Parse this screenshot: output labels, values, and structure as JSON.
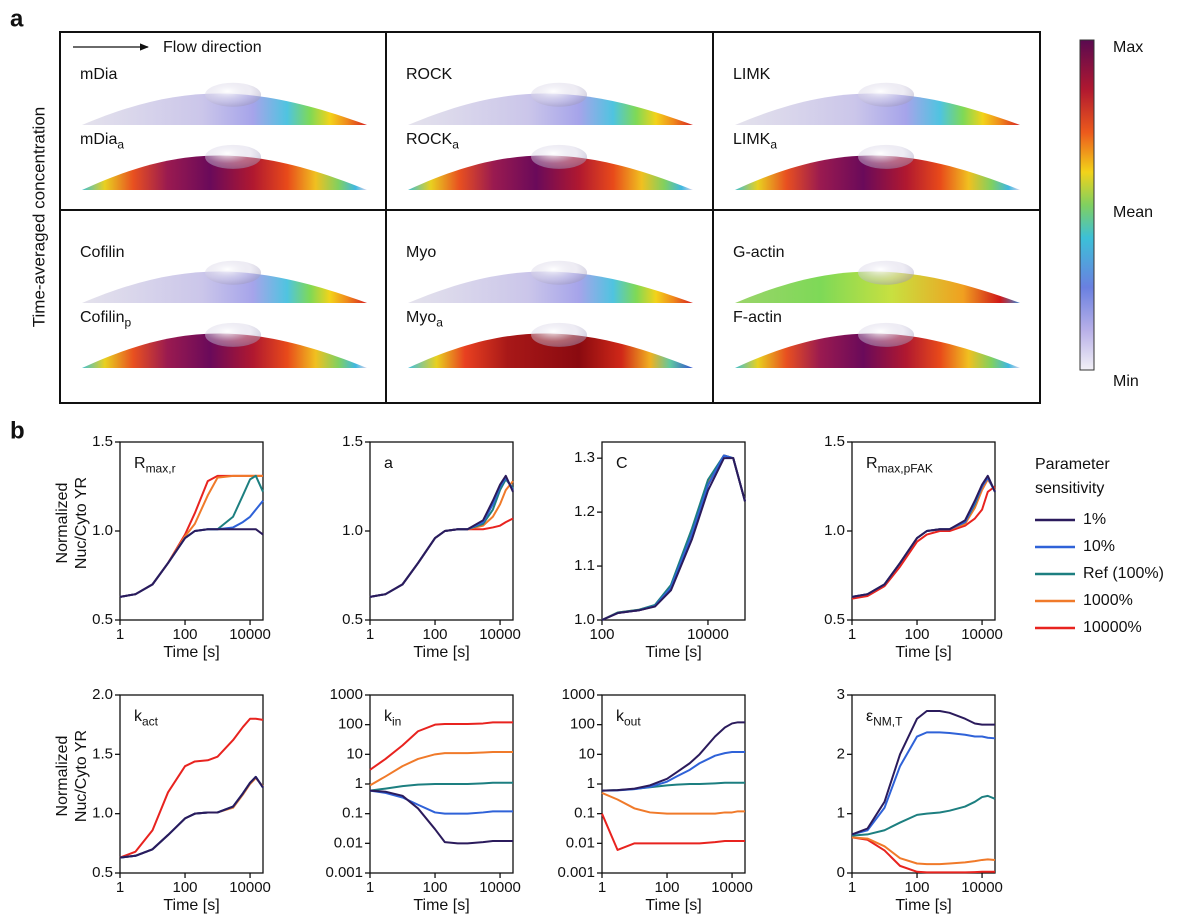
{
  "panel_a": {
    "label": "a",
    "flow": "Flow direction",
    "ylabel": "Time-averaged concentration",
    "cells": [
      {
        "top": {
          "main": "mDia"
        },
        "bottom": {
          "main": "mDia",
          "sub": "a"
        }
      },
      {
        "top": {
          "main": "ROCK"
        },
        "bottom": {
          "main": "ROCK",
          "sub": "a"
        }
      },
      {
        "top": {
          "main": "LIMK"
        },
        "bottom": {
          "main": "LIMK",
          "sub": "a"
        }
      },
      {
        "top": {
          "main": "Cofilin"
        },
        "bottom": {
          "main": "Cofilin",
          "sub": "p"
        }
      },
      {
        "top": {
          "main": "Myo"
        },
        "bottom": {
          "main": "Myo",
          "sub": "a"
        }
      },
      {
        "top": {
          "main": "G-actin"
        },
        "bottom": {
          "main": "F-actin"
        }
      }
    ],
    "colorbar": {
      "max": "Max",
      "mean": "Mean",
      "min": "Min"
    }
  },
  "panel_b": {
    "label": "b",
    "legend": {
      "title": [
        "Parameter",
        "sensitivity"
      ],
      "entries": [
        {
          "name": "1%",
          "color": "#2b1b5c"
        },
        {
          "name": "10%",
          "color": "#2f62d8"
        },
        {
          "name": "Ref (100%)",
          "color": "#1d7f80"
        },
        {
          "name": "1000%",
          "color": "#f07a2a"
        },
        {
          "name": "10000%",
          "color": "#e8231f"
        }
      ]
    }
  },
  "chart_data": [
    {
      "type": "line",
      "label": {
        "main": "R",
        "sub": "max,r"
      },
      "ylabel": [
        "Normalized",
        "Nuc/Cyto YR"
      ],
      "xlabel": "Time [s]",
      "xscale": "log",
      "yscale": "linear",
      "x": [
        1,
        3,
        10,
        30,
        100,
        200,
        500,
        1000,
        3000,
        6000,
        10000,
        15000,
        25000
      ],
      "xlim": [
        1,
        25000
      ],
      "xticks": [
        1,
        100,
        10000
      ],
      "ylim": [
        0.5,
        1.5
      ],
      "yticks": [
        0.5,
        {
          "value": 1,
          "label": "1.0"
        },
        1.5
      ],
      "series": [
        {
          "values": [
            0.63,
            0.645,
            0.7,
            0.82,
            0.96,
            1.0,
            1.01,
            1.01,
            1.01,
            1.01,
            1.01,
            1.01,
            0.98
          ]
        },
        {
          "values": [
            0.63,
            0.645,
            0.7,
            0.82,
            0.96,
            1.0,
            1.01,
            1.01,
            1.02,
            1.05,
            1.08,
            1.12,
            1.17
          ]
        },
        {
          "values": [
            0.63,
            0.645,
            0.7,
            0.82,
            0.96,
            1.0,
            1.01,
            1.01,
            1.08,
            1.2,
            1.29,
            1.31,
            1.22
          ]
        },
        {
          "values": [
            0.63,
            0.645,
            0.7,
            0.82,
            0.97,
            1.04,
            1.2,
            1.3,
            1.31,
            1.31,
            1.31,
            1.31,
            1.31
          ]
        },
        {
          "values": [
            0.63,
            0.645,
            0.7,
            0.82,
            0.98,
            1.1,
            1.28,
            1.31,
            1.31,
            1.31,
            1.31,
            1.31,
            1.31
          ]
        }
      ]
    },
    {
      "type": "line",
      "label": {
        "main": "a"
      },
      "xlabel": "Time [s]",
      "xscale": "log",
      "yscale": "linear",
      "x": [
        1,
        3,
        10,
        30,
        100,
        200,
        500,
        1000,
        3000,
        6000,
        10000,
        15000,
        25000
      ],
      "xlim": [
        1,
        25000
      ],
      "xticks": [
        1,
        100,
        10000
      ],
      "ylim": [
        0.5,
        1.5
      ],
      "yticks": [
        0.5,
        {
          "value": 1,
          "label": "1.0"
        },
        1.5
      ],
      "series": [
        {
          "values": [
            0.63,
            0.645,
            0.7,
            0.82,
            0.96,
            1.0,
            1.01,
            1.01,
            1.06,
            1.17,
            1.26,
            1.31,
            1.22
          ]
        },
        {
          "values": [
            0.63,
            0.645,
            0.7,
            0.82,
            0.96,
            1.0,
            1.01,
            1.01,
            1.05,
            1.15,
            1.25,
            1.3,
            1.23
          ]
        },
        {
          "values": [
            0.63,
            0.645,
            0.7,
            0.82,
            0.96,
            1.0,
            1.01,
            1.01,
            1.04,
            1.12,
            1.23,
            1.29,
            1.24
          ]
        },
        {
          "values": [
            0.63,
            0.645,
            0.7,
            0.82,
            0.96,
            1.0,
            1.01,
            1.01,
            1.03,
            1.08,
            1.15,
            1.23,
            1.28
          ]
        },
        {
          "values": [
            0.63,
            0.645,
            0.7,
            0.82,
            0.96,
            1.0,
            1.01,
            1.01,
            1.01,
            1.02,
            1.03,
            1.05,
            1.07
          ]
        }
      ]
    },
    {
      "type": "line",
      "label": {
        "main": "C"
      },
      "xlabel": "Time [s]",
      "xscale": "log",
      "yscale": "linear",
      "x": [
        100,
        200,
        500,
        1000,
        2000,
        5000,
        10000,
        20000,
        30000,
        50000
      ],
      "xlim": [
        100,
        50000
      ],
      "xticks": [
        100,
        10000
      ],
      "ylim": [
        1.0,
        1.33
      ],
      "yticks": [
        {
          "value": 1,
          "label": "1.0"
        },
        1.1,
        1.2,
        1.3
      ],
      "series": [
        {
          "values": [
            1.0,
            1.013,
            1.018,
            1.025,
            1.055,
            1.15,
            1.24,
            1.3,
            1.3,
            1.22
          ]
        },
        {
          "values": [
            1.0,
            1.013,
            1.018,
            1.026,
            1.06,
            1.16,
            1.25,
            1.305,
            1.3,
            1.22
          ]
        },
        {
          "values": [
            1.0,
            1.014,
            1.019,
            1.028,
            1.065,
            1.17,
            1.26,
            1.305,
            1.3,
            1.22
          ]
        },
        {
          "values": [
            1.0,
            1.014,
            1.019,
            1.027,
            1.062,
            1.165,
            1.255,
            1.305,
            1.3,
            1.22
          ]
        },
        {
          "values": [
            1.0,
            1.013,
            1.018,
            1.026,
            1.058,
            1.16,
            1.25,
            1.305,
            1.3,
            1.22
          ]
        }
      ]
    },
    {
      "type": "line",
      "label": {
        "main": "R",
        "sub": "max,pFAK"
      },
      "xlabel": "Time [s]",
      "xscale": "log",
      "yscale": "linear",
      "x": [
        1,
        3,
        10,
        30,
        100,
        200,
        500,
        1000,
        3000,
        6000,
        10000,
        15000,
        25000
      ],
      "xlim": [
        1,
        25000
      ],
      "xticks": [
        1,
        100,
        10000
      ],
      "ylim": [
        0.5,
        1.5
      ],
      "yticks": [
        0.5,
        {
          "value": 1,
          "label": "1.0"
        },
        1.5
      ],
      "series": [
        {
          "values": [
            0.63,
            0.645,
            0.7,
            0.82,
            0.96,
            1.0,
            1.01,
            1.01,
            1.06,
            1.17,
            1.26,
            1.31,
            1.22
          ]
        },
        {
          "values": [
            0.63,
            0.645,
            0.7,
            0.82,
            0.96,
            1.0,
            1.01,
            1.01,
            1.05,
            1.16,
            1.25,
            1.3,
            1.22
          ]
        },
        {
          "values": [
            0.63,
            0.645,
            0.7,
            0.82,
            0.96,
            1.0,
            1.01,
            1.01,
            1.05,
            1.15,
            1.25,
            1.3,
            1.22
          ]
        },
        {
          "values": [
            0.63,
            0.645,
            0.7,
            0.82,
            0.96,
            1.0,
            1.01,
            1.01,
            1.04,
            1.13,
            1.23,
            1.29,
            1.23
          ]
        },
        {
          "values": [
            0.62,
            0.635,
            0.69,
            0.8,
            0.94,
            0.98,
            1.0,
            1.0,
            1.03,
            1.07,
            1.12,
            1.22,
            1.25
          ]
        }
      ]
    },
    {
      "type": "line",
      "label": {
        "main": "k",
        "sub": "act"
      },
      "ylabel": [
        "Normalized",
        "Nuc/Cyto YR"
      ],
      "xlabel": "Time [s]",
      "xscale": "log",
      "yscale": "linear",
      "x": [
        1,
        3,
        10,
        30,
        100,
        200,
        500,
        1000,
        3000,
        6000,
        10000,
        15000,
        25000
      ],
      "xlim": [
        1,
        25000
      ],
      "xticks": [
        1,
        100,
        10000
      ],
      "ylim": [
        0.5,
        2.0
      ],
      "yticks": [
        0.5,
        {
          "value": 1,
          "label": "1.0"
        },
        1.5,
        {
          "value": 2,
          "label": "2.0"
        }
      ],
      "series": [
        {
          "values": [
            0.63,
            0.645,
            0.7,
            0.82,
            0.96,
            1.0,
            1.01,
            1.01,
            1.06,
            1.17,
            1.26,
            1.31,
            1.22
          ]
        },
        {
          "values": [
            0.63,
            0.645,
            0.7,
            0.82,
            0.96,
            1.0,
            1.01,
            1.01,
            1.06,
            1.17,
            1.26,
            1.31,
            1.22
          ]
        },
        {
          "values": [
            0.63,
            0.645,
            0.7,
            0.82,
            0.96,
            1.0,
            1.01,
            1.01,
            1.06,
            1.17,
            1.26,
            1.31,
            1.22
          ]
        },
        {
          "values": [
            0.63,
            0.645,
            0.7,
            0.82,
            0.96,
            1.0,
            1.01,
            1.01,
            1.05,
            1.16,
            1.25,
            1.3,
            1.23
          ]
        },
        {
          "values": [
            0.63,
            0.68,
            0.86,
            1.18,
            1.4,
            1.44,
            1.45,
            1.48,
            1.62,
            1.73,
            1.8,
            1.8,
            1.79
          ]
        }
      ]
    },
    {
      "type": "line",
      "label": {
        "main": "k",
        "sub": "in"
      },
      "xlabel": "Time [s]",
      "xscale": "log",
      "yscale": "log",
      "x": [
        1,
        3,
        10,
        30,
        100,
        200,
        500,
        1000,
        3000,
        6000,
        10000,
        15000,
        25000
      ],
      "xlim": [
        1,
        25000
      ],
      "xticks": [
        1,
        100,
        10000
      ],
      "ylim": [
        0.001,
        1000
      ],
      "yticks": [
        0.001,
        0.01,
        0.1,
        1,
        10,
        100,
        1000
      ],
      "series": [
        {
          "values": [
            0.6,
            0.55,
            0.4,
            0.15,
            0.03,
            0.011,
            0.01,
            0.01,
            0.011,
            0.012,
            0.012,
            0.012,
            0.012
          ]
        },
        {
          "values": [
            0.6,
            0.5,
            0.35,
            0.2,
            0.11,
            0.1,
            0.1,
            0.1,
            0.11,
            0.12,
            0.12,
            0.12,
            0.12
          ]
        },
        {
          "values": [
            0.6,
            0.7,
            0.85,
            0.95,
            1.0,
            1.0,
            1.0,
            1.0,
            1.05,
            1.1,
            1.1,
            1.1,
            1.1
          ]
        },
        {
          "values": [
            0.9,
            1.8,
            4,
            7,
            10,
            11,
            11,
            11,
            11.5,
            12,
            12,
            12,
            12
          ]
        },
        {
          "values": [
            3,
            7,
            20,
            60,
            100,
            105,
            105,
            105,
            110,
            120,
            120,
            120,
            120
          ]
        }
      ]
    },
    {
      "type": "line",
      "label": {
        "main": "k",
        "sub": "out"
      },
      "xlabel": "Time [s]",
      "xscale": "log",
      "yscale": "log",
      "x": [
        1,
        3,
        10,
        30,
        100,
        200,
        500,
        1000,
        3000,
        6000,
        10000,
        15000,
        25000
      ],
      "xlim": [
        1,
        25000
      ],
      "xticks": [
        1,
        100,
        10000
      ],
      "ylim": [
        0.001,
        1000
      ],
      "yticks": [
        0.001,
        0.01,
        0.1,
        1,
        10,
        100,
        1000
      ],
      "series": [
        {
          "values": [
            0.6,
            0.62,
            0.7,
            0.9,
            1.5,
            2.5,
            5,
            10,
            40,
            80,
            110,
            120,
            120
          ]
        },
        {
          "values": [
            0.6,
            0.61,
            0.67,
            0.8,
            1.2,
            1.8,
            3,
            5,
            9,
            11,
            12,
            12,
            12
          ]
        },
        {
          "values": [
            0.6,
            0.62,
            0.68,
            0.78,
            0.9,
            0.95,
            1,
            1,
            1.05,
            1.1,
            1.1,
            1.1,
            1.1
          ]
        },
        {
          "values": [
            0.5,
            0.3,
            0.15,
            0.11,
            0.1,
            0.1,
            0.1,
            0.1,
            0.1,
            0.11,
            0.11,
            0.12,
            0.12
          ]
        },
        {
          "values": [
            0.1,
            0.006,
            0.01,
            0.01,
            0.01,
            0.01,
            0.01,
            0.01,
            0.011,
            0.012,
            0.012,
            0.012,
            0.012
          ]
        }
      ]
    },
    {
      "type": "line",
      "label": {
        "main": "ε",
        "sub": "NM,T"
      },
      "xlabel": "Time [s]",
      "xscale": "log",
      "yscale": "linear",
      "x": [
        1,
        3,
        10,
        30,
        100,
        200,
        500,
        1000,
        3000,
        6000,
        10000,
        15000,
        25000
      ],
      "xlim": [
        1,
        25000
      ],
      "xticks": [
        1,
        100,
        10000
      ],
      "ylim": [
        0,
        3
      ],
      "yticks": [
        0,
        1,
        2,
        3
      ],
      "series": [
        {
          "values": [
            0.65,
            0.75,
            1.2,
            2.0,
            2.6,
            2.73,
            2.73,
            2.7,
            2.6,
            2.52,
            2.5,
            2.5,
            2.5
          ]
        },
        {
          "values": [
            0.65,
            0.72,
            1.1,
            1.8,
            2.3,
            2.37,
            2.37,
            2.36,
            2.33,
            2.3,
            2.3,
            2.28,
            2.27
          ]
        },
        {
          "values": [
            0.63,
            0.65,
            0.72,
            0.85,
            0.98,
            1.0,
            1.02,
            1.05,
            1.12,
            1.2,
            1.28,
            1.3,
            1.25
          ]
        },
        {
          "values": [
            0.6,
            0.58,
            0.45,
            0.25,
            0.16,
            0.15,
            0.15,
            0.16,
            0.18,
            0.2,
            0.22,
            0.23,
            0.22
          ]
        },
        {
          "values": [
            0.6,
            0.56,
            0.38,
            0.12,
            0.02,
            0.01,
            0.01,
            0.01,
            0.01,
            0.015,
            0.02,
            0.02,
            0.02
          ]
        }
      ]
    }
  ]
}
